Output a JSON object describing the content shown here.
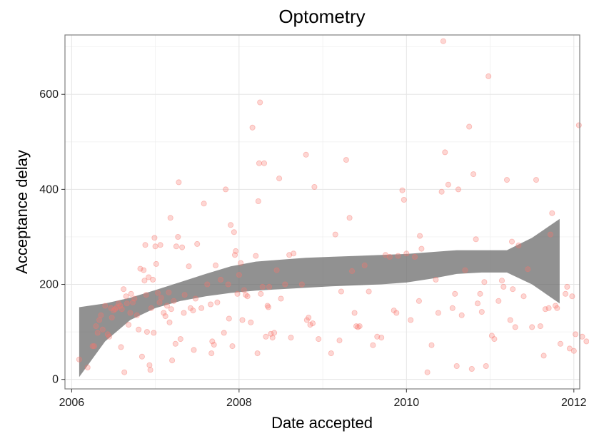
{
  "chart_data": {
    "type": "scatter",
    "title": "Optometry",
    "xlabel": "Date accepted",
    "ylabel": "Acceptance delay",
    "x_unit": "year",
    "xlim": [
      2005.92,
      2012.07
    ],
    "ylim": [
      -20,
      725
    ],
    "x_ticks": [
      2006,
      2008,
      2010,
      2012
    ],
    "x_tick_labels": [
      "2006",
      "2008",
      "2010",
      "2012"
    ],
    "y_ticks": [
      0,
      200,
      400,
      600
    ],
    "y_tick_labels": [
      "0",
      "200",
      "400",
      "600"
    ],
    "grid": true,
    "point_color": "#f8766d",
    "band_color": "#666666",
    "points": [
      [
        2006.09,
        42
      ],
      [
        2006.19,
        25
      ],
      [
        2006.25,
        70
      ],
      [
        2006.27,
        70
      ],
      [
        2006.29,
        112
      ],
      [
        2006.31,
        98
      ],
      [
        2006.33,
        125
      ],
      [
        2006.35,
        135
      ],
      [
        2006.37,
        105
      ],
      [
        2006.4,
        155
      ],
      [
        2006.43,
        95
      ],
      [
        2006.45,
        90
      ],
      [
        2006.47,
        150
      ],
      [
        2006.48,
        130
      ],
      [
        2006.5,
        145
      ],
      [
        2006.52,
        148
      ],
      [
        2006.54,
        152
      ],
      [
        2006.56,
        160
      ],
      [
        2006.58,
        155
      ],
      [
        2006.59,
        68
      ],
      [
        2006.6,
        148
      ],
      [
        2006.62,
        190
      ],
      [
        2006.63,
        15
      ],
      [
        2006.65,
        175
      ],
      [
        2006.66,
        160
      ],
      [
        2006.68,
        115
      ],
      [
        2006.7,
        140
      ],
      [
        2006.71,
        180
      ],
      [
        2006.73,
        162
      ],
      [
        2006.75,
        170
      ],
      [
        2006.78,
        135
      ],
      [
        2006.8,
        105
      ],
      [
        2006.82,
        233
      ],
      [
        2006.84,
        48
      ],
      [
        2006.86,
        230
      ],
      [
        2006.87,
        208
      ],
      [
        2006.88,
        283
      ],
      [
        2006.89,
        178
      ],
      [
        2006.9,
        100
      ],
      [
        2006.92,
        215
      ],
      [
        2006.93,
        30
      ],
      [
        2006.94,
        20
      ],
      [
        2006.95,
        150
      ],
      [
        2006.97,
        210
      ],
      [
        2006.98,
        98
      ],
      [
        2006.99,
        298
      ],
      [
        2007.0,
        280
      ],
      [
        2007.01,
        243
      ],
      [
        2007.03,
        182
      ],
      [
        2007.05,
        162
      ],
      [
        2007.06,
        283
      ],
      [
        2007.07,
        172
      ],
      [
        2007.1,
        140
      ],
      [
        2007.12,
        133
      ],
      [
        2007.14,
        155
      ],
      [
        2007.16,
        183
      ],
      [
        2007.17,
        120
      ],
      [
        2007.18,
        340
      ],
      [
        2007.19,
        148
      ],
      [
        2007.2,
        40
      ],
      [
        2007.22,
        165
      ],
      [
        2007.24,
        75
      ],
      [
        2007.25,
        280
      ],
      [
        2007.27,
        300
      ],
      [
        2007.28,
        415
      ],
      [
        2007.3,
        85
      ],
      [
        2007.32,
        278
      ],
      [
        2007.34,
        140
      ],
      [
        2007.35,
        178
      ],
      [
        2007.4,
        238
      ],
      [
        2007.42,
        150
      ],
      [
        2007.45,
        145
      ],
      [
        2007.46,
        62
      ],
      [
        2007.48,
        170
      ],
      [
        2007.5,
        285
      ],
      [
        2007.55,
        150
      ],
      [
        2007.58,
        370
      ],
      [
        2007.62,
        200
      ],
      [
        2007.66,
        158
      ],
      [
        2007.67,
        55
      ],
      [
        2007.68,
        80
      ],
      [
        2007.7,
        73
      ],
      [
        2007.72,
        240
      ],
      [
        2007.74,
        162
      ],
      [
        2007.78,
        210
      ],
      [
        2007.82,
        98
      ],
      [
        2007.84,
        400
      ],
      [
        2007.87,
        200
      ],
      [
        2007.88,
        128
      ],
      [
        2007.9,
        325
      ],
      [
        2007.92,
        70
      ],
      [
        2007.94,
        310
      ],
      [
        2007.95,
        262
      ],
      [
        2007.96,
        270
      ],
      [
        2007.98,
        180
      ],
      [
        2008.0,
        220
      ],
      [
        2008.02,
        245
      ],
      [
        2008.04,
        125
      ],
      [
        2008.06,
        188
      ],
      [
        2008.08,
        178
      ],
      [
        2008.1,
        175
      ],
      [
        2008.14,
        120
      ],
      [
        2008.16,
        530
      ],
      [
        2008.2,
        260
      ],
      [
        2008.22,
        55
      ],
      [
        2008.23,
        375
      ],
      [
        2008.24,
        455
      ],
      [
        2008.25,
        583
      ],
      [
        2008.26,
        180
      ],
      [
        2008.28,
        195
      ],
      [
        2008.3,
        455
      ],
      [
        2008.32,
        90
      ],
      [
        2008.34,
        155
      ],
      [
        2008.35,
        152
      ],
      [
        2008.36,
        195
      ],
      [
        2008.38,
        96
      ],
      [
        2008.4,
        88
      ],
      [
        2008.42,
        98
      ],
      [
        2008.45,
        230
      ],
      [
        2008.48,
        423
      ],
      [
        2008.5,
        170
      ],
      [
        2008.55,
        200
      ],
      [
        2008.6,
        262
      ],
      [
        2008.62,
        88
      ],
      [
        2008.65,
        265
      ],
      [
        2008.75,
        200
      ],
      [
        2008.8,
        473
      ],
      [
        2008.81,
        125
      ],
      [
        2008.83,
        130
      ],
      [
        2008.85,
        115
      ],
      [
        2008.88,
        118
      ],
      [
        2008.9,
        405
      ],
      [
        2008.95,
        85
      ],
      [
        2009.1,
        55
      ],
      [
        2009.15,
        305
      ],
      [
        2009.2,
        82
      ],
      [
        2009.22,
        185
      ],
      [
        2009.28,
        462
      ],
      [
        2009.32,
        340
      ],
      [
        2009.35,
        228
      ],
      [
        2009.38,
        140
      ],
      [
        2009.4,
        112
      ],
      [
        2009.42,
        110
      ],
      [
        2009.44,
        112
      ],
      [
        2009.5,
        240
      ],
      [
        2009.55,
        185
      ],
      [
        2009.6,
        72
      ],
      [
        2009.65,
        90
      ],
      [
        2009.7,
        88
      ],
      [
        2009.75,
        262
      ],
      [
        2009.8,
        258
      ],
      [
        2009.85,
        145
      ],
      [
        2009.88,
        140
      ],
      [
        2009.9,
        260
      ],
      [
        2009.95,
        398
      ],
      [
        2009.97,
        378
      ],
      [
        2010.0,
        265
      ],
      [
        2010.05,
        125
      ],
      [
        2010.1,
        258
      ],
      [
        2010.15,
        165
      ],
      [
        2010.16,
        302
      ],
      [
        2010.18,
        275
      ],
      [
        2010.25,
        15
      ],
      [
        2010.3,
        72
      ],
      [
        2010.35,
        210
      ],
      [
        2010.38,
        140
      ],
      [
        2010.42,
        395
      ],
      [
        2010.44,
        712
      ],
      [
        2010.46,
        478
      ],
      [
        2010.5,
        410
      ],
      [
        2010.55,
        150
      ],
      [
        2010.58,
        180
      ],
      [
        2010.6,
        28
      ],
      [
        2010.62,
        400
      ],
      [
        2010.66,
        135
      ],
      [
        2010.7,
        230
      ],
      [
        2010.75,
        532
      ],
      [
        2010.78,
        22
      ],
      [
        2010.8,
        432
      ],
      [
        2010.83,
        295
      ],
      [
        2010.85,
        160
      ],
      [
        2010.88,
        180
      ],
      [
        2010.9,
        142
      ],
      [
        2010.93,
        205
      ],
      [
        2010.95,
        28
      ],
      [
        2010.98,
        638
      ],
      [
        2011.02,
        92
      ],
      [
        2011.05,
        85
      ],
      [
        2011.1,
        165
      ],
      [
        2011.14,
        208
      ],
      [
        2011.16,
        195
      ],
      [
        2011.2,
        420
      ],
      [
        2011.24,
        125
      ],
      [
        2011.26,
        290
      ],
      [
        2011.27,
        190
      ],
      [
        2011.3,
        110
      ],
      [
        2011.34,
        282
      ],
      [
        2011.4,
        175
      ],
      [
        2011.45,
        232
      ],
      [
        2011.5,
        110
      ],
      [
        2011.55,
        420
      ],
      [
        2011.6,
        112
      ],
      [
        2011.64,
        50
      ],
      [
        2011.66,
        148
      ],
      [
        2011.7,
        150
      ],
      [
        2011.72,
        305
      ],
      [
        2011.74,
        350
      ],
      [
        2011.78,
        155
      ],
      [
        2011.8,
        150
      ],
      [
        2011.84,
        75
      ],
      [
        2011.9,
        180
      ],
      [
        2011.92,
        195
      ],
      [
        2011.95,
        65
      ],
      [
        2011.98,
        175
      ],
      [
        2012.0,
        60
      ],
      [
        2012.02,
        95
      ],
      [
        2012.06,
        535
      ],
      [
        2012.1,
        90
      ],
      [
        2012.15,
        80
      ]
    ],
    "smooth_band": {
      "x": [
        2006.09,
        2006.4,
        2006.7,
        2007.0,
        2007.3,
        2007.6,
        2007.9,
        2008.2,
        2008.5,
        2008.8,
        2009.1,
        2009.4,
        2009.7,
        2010.0,
        2010.3,
        2010.6,
        2010.9,
        2011.2,
        2011.5,
        2011.83
      ],
      "lower": [
        5,
        80,
        125,
        150,
        165,
        175,
        182,
        187,
        190,
        193,
        196,
        198,
        200,
        204,
        212,
        222,
        225,
        225,
        200,
        160
      ],
      "upper": [
        152,
        160,
        172,
        188,
        205,
        222,
        238,
        248,
        252,
        256,
        258,
        260,
        262,
        264,
        268,
        272,
        272,
        272,
        298,
        338
      ]
    }
  }
}
